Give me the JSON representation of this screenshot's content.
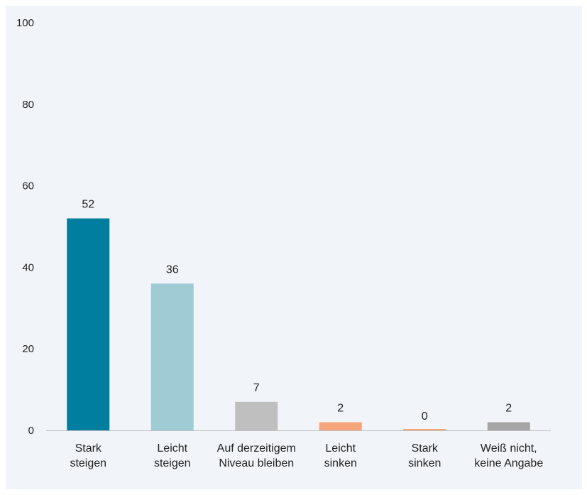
{
  "chart_data": {
    "type": "bar",
    "categories": [
      [
        "Stark",
        "steigen"
      ],
      [
        "Leicht",
        "steigen"
      ],
      [
        "Auf derzeitigem",
        "Niveau bleiben"
      ],
      [
        "Leicht",
        "sinken"
      ],
      [
        "Stark",
        "sinken"
      ],
      [
        "Weiß nicht,",
        "keine Angabe"
      ]
    ],
    "values": [
      52,
      36,
      7,
      2,
      0,
      2
    ],
    "colors": [
      "#007ea0",
      "#9fcbd4",
      "#bfbfbf",
      "#f6a57a",
      "#f6a57a",
      "#a5a5a5"
    ],
    "yticks": [
      0,
      20,
      40,
      60,
      80,
      100
    ],
    "ylim": [
      0,
      100
    ],
    "title": "",
    "xlabel": "",
    "ylabel": "",
    "grid": false
  }
}
